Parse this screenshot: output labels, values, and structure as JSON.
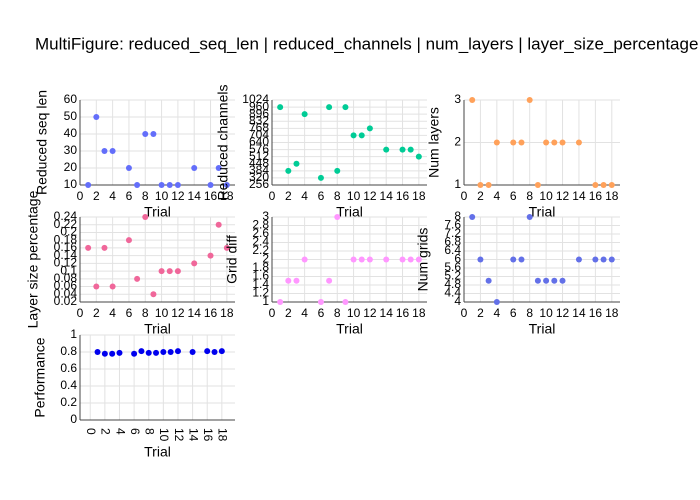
{
  "title": "MultiFigure: reduced_seq_len | reduced_channels | num_layers | layer_size_percentage",
  "chart_data": [
    {
      "type": "scatter",
      "y_label": "Reduced seq len",
      "x_label": "Trial",
      "color": "#636efa",
      "x": [
        1,
        2,
        3,
        4,
        6,
        7,
        8,
        9,
        10,
        11,
        12,
        14,
        16,
        17,
        18
      ],
      "values": [
        10,
        50,
        30,
        30,
        20,
        10,
        40,
        40,
        10,
        10,
        10,
        20,
        10,
        20,
        10
      ],
      "xlim": [
        0,
        19
      ],
      "ylim": [
        10,
        60
      ],
      "xticks": [
        0,
        2,
        4,
        6,
        8,
        10,
        12,
        14,
        16,
        18
      ],
      "yticks": [
        10,
        20,
        30,
        40,
        50,
        60
      ],
      "grid": true
    },
    {
      "type": "scatter",
      "y_label": "Reduced channels",
      "x_label": "Trial",
      "color": "#00cc96",
      "x": [
        1,
        2,
        3,
        4,
        6,
        7,
        8,
        9,
        10,
        11,
        12,
        14,
        16,
        17,
        18
      ],
      "values": [
        960,
        384,
        448,
        896,
        320,
        960,
        384,
        960,
        704,
        704,
        768,
        576,
        576,
        576,
        512
      ],
      "xlim": [
        0,
        19
      ],
      "ylim": [
        256,
        1024
      ],
      "xticks": [
        0,
        2,
        4,
        6,
        8,
        10,
        12,
        14,
        16,
        18
      ],
      "yticks": [
        256,
        320,
        384,
        448,
        512,
        576,
        640,
        704,
        768,
        832,
        896,
        960,
        1024
      ],
      "grid": true
    },
    {
      "type": "scatter",
      "y_label": "Num layers",
      "x_label": "Trial",
      "color": "#ffa15a",
      "x": [
        1,
        2,
        3,
        4,
        6,
        7,
        8,
        9,
        10,
        11,
        12,
        14,
        16,
        17,
        18
      ],
      "values": [
        3,
        1,
        1,
        2,
        2,
        2,
        3,
        1,
        2,
        2,
        2,
        2,
        1,
        1,
        1
      ],
      "xlim": [
        0,
        19
      ],
      "ylim": [
        1,
        3
      ],
      "xticks": [
        0,
        2,
        4,
        6,
        8,
        10,
        12,
        14,
        16,
        18
      ],
      "yticks": [
        1,
        2,
        3
      ],
      "grid": true
    },
    {
      "type": "scatter",
      "y_label": "Layer size percentage",
      "x_label": "Trial",
      "color": "#f0679a",
      "x": [
        1,
        2,
        3,
        4,
        6,
        7,
        8,
        9,
        10,
        11,
        12,
        14,
        16,
        17,
        18
      ],
      "values": [
        0.16,
        0.06,
        0.16,
        0.06,
        0.18,
        0.08,
        0.24,
        0.04,
        0.1,
        0.1,
        0.1,
        0.12,
        0.14,
        0.22,
        0.16
      ],
      "xlim": [
        0,
        19
      ],
      "ylim": [
        0.02,
        0.24
      ],
      "xticks": [
        0,
        2,
        4,
        6,
        8,
        10,
        12,
        14,
        16,
        18
      ],
      "yticks": [
        0.02,
        0.04,
        0.06,
        0.08,
        0.1,
        0.12,
        0.14,
        0.16,
        0.18,
        0.2,
        0.22,
        0.24
      ],
      "grid": true
    },
    {
      "type": "scatter",
      "y_label": "Grid diff",
      "x_label": "Trial",
      "color": "#ff97ff",
      "x": [
        1,
        2,
        3,
        4,
        6,
        7,
        8,
        9,
        10,
        11,
        12,
        14,
        16,
        17,
        18
      ],
      "values": [
        1,
        1.5,
        1.5,
        2,
        1,
        1.5,
        3,
        1,
        2,
        2,
        2,
        2,
        2,
        2,
        2
      ],
      "xlim": [
        0,
        19
      ],
      "ylim": [
        1,
        3
      ],
      "xticks": [
        0,
        2,
        4,
        6,
        8,
        10,
        12,
        14,
        16,
        18
      ],
      "yticks": [
        1,
        1.2,
        1.4,
        1.6,
        1.8,
        2,
        2.2,
        2.4,
        2.6,
        2.8,
        3
      ],
      "grid": true
    },
    {
      "type": "scatter",
      "y_label": "Num grids",
      "x_label": "Trial",
      "color": "#6370e8",
      "x": [
        1,
        2,
        3,
        4,
        6,
        7,
        8,
        9,
        10,
        11,
        12,
        14,
        16,
        17,
        18
      ],
      "values": [
        8,
        6,
        5,
        4,
        6,
        6,
        8,
        5,
        5,
        5,
        5,
        6,
        6,
        6,
        6
      ],
      "xlim": [
        0,
        19
      ],
      "ylim": [
        4,
        8
      ],
      "xticks": [
        0,
        2,
        4,
        6,
        8,
        10,
        12,
        14,
        16,
        18
      ],
      "yticks": [
        4,
        4.4,
        4.8,
        5.2,
        5.6,
        6,
        6.4,
        6.8,
        7.2,
        7.6,
        8
      ],
      "grid": true
    },
    {
      "type": "scatter",
      "y_label": "Performance",
      "x_label": "Trial",
      "color": "#0000ee",
      "rotate_xticks": true,
      "x": [
        1,
        2,
        3,
        4,
        6,
        7,
        8,
        9,
        10,
        11,
        12,
        14,
        16,
        17,
        18
      ],
      "values": [
        0.8,
        0.78,
        0.78,
        0.79,
        0.78,
        0.81,
        0.79,
        0.79,
        0.8,
        0.8,
        0.81,
        0.8,
        0.81,
        0.8,
        0.81
      ],
      "xlim": [
        -1.4,
        19.8
      ],
      "ylim": [
        0,
        1
      ],
      "xticks": [
        0,
        2,
        4,
        6,
        8,
        10,
        12,
        14,
        16,
        18
      ],
      "yticks": [
        0,
        0.2,
        0.4,
        0.6,
        0.8,
        1
      ],
      "grid": true
    }
  ]
}
